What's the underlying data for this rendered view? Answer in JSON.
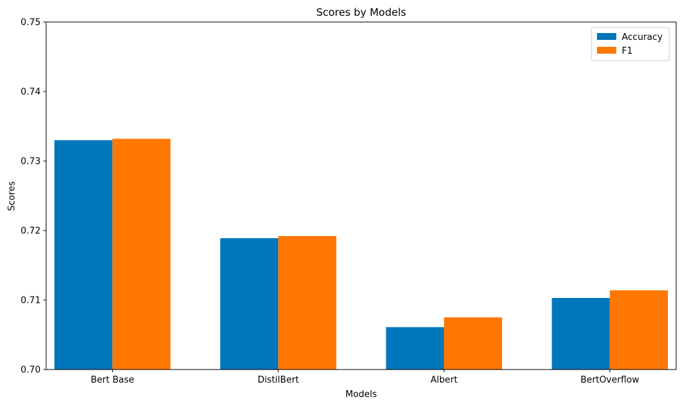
{
  "chart_data": {
    "type": "bar",
    "title": "Scores by Models",
    "xlabel": "Models",
    "ylabel": "Scores",
    "categories": [
      "Bert Base",
      "DistilBert",
      "Albert",
      "BertOverflow"
    ],
    "series": [
      {
        "name": "Accuracy",
        "color": "#0077bb",
        "values": [
          0.733,
          0.7189,
          0.7061,
          0.7103
        ]
      },
      {
        "name": "F1",
        "color": "#ff7700",
        "values": [
          0.7332,
          0.7192,
          0.7075,
          0.7114
        ]
      }
    ],
    "ylim": [
      0.7,
      0.75
    ],
    "yticks": [
      "0.70",
      "0.71",
      "0.72",
      "0.73",
      "0.74",
      "0.75"
    ],
    "grid": false,
    "legend": "top-right"
  }
}
